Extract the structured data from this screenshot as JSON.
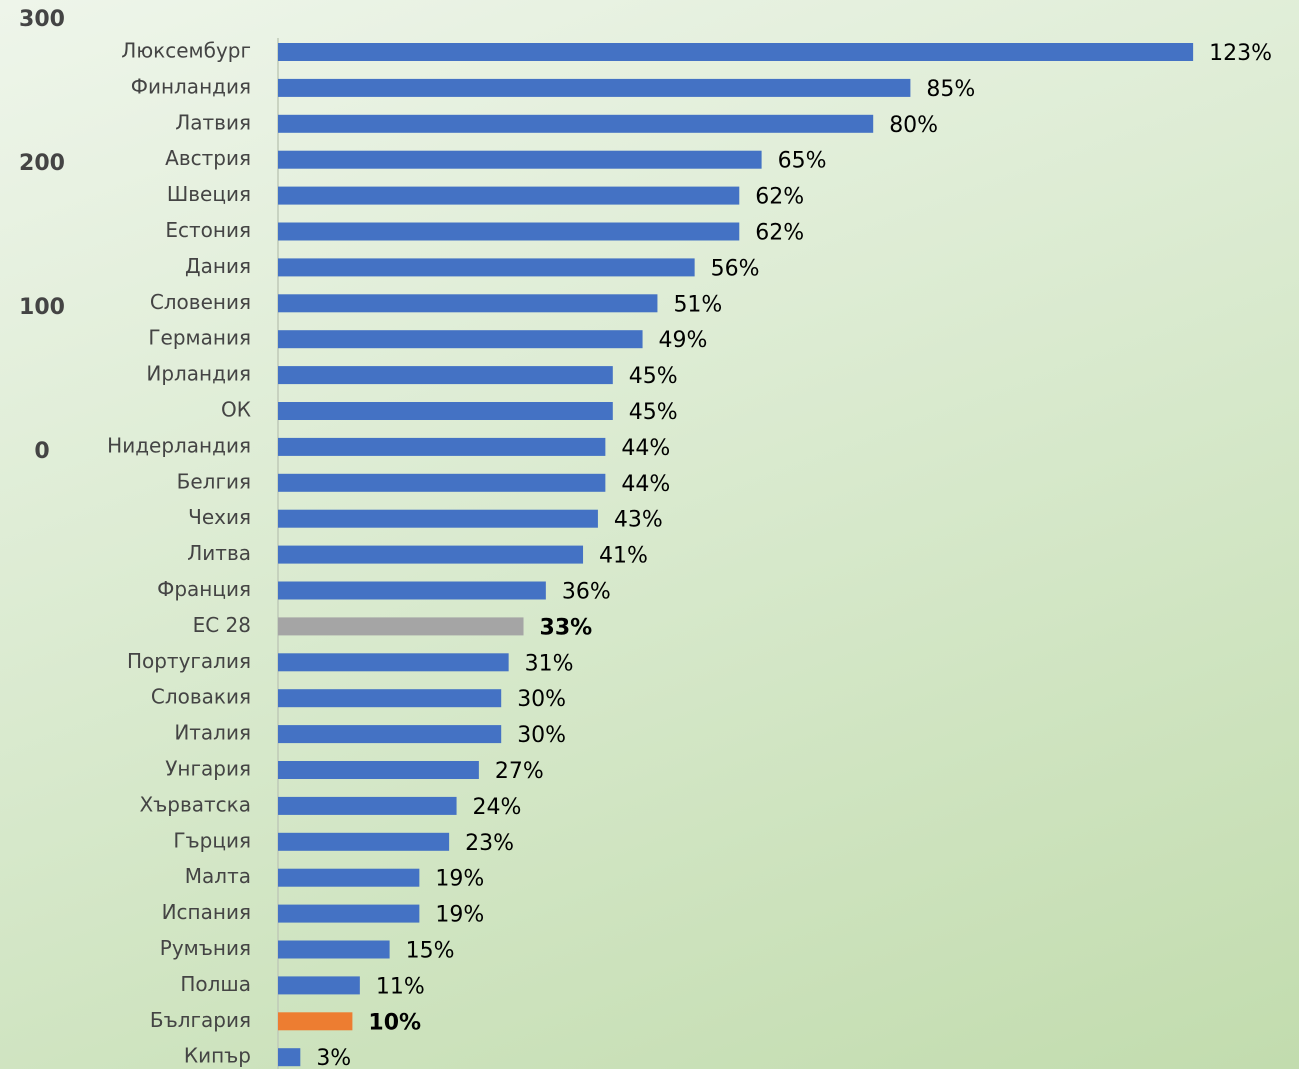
{
  "chart_data": {
    "type": "bar",
    "orientation": "horizontal",
    "categories": [
      "Люксембург",
      "Финландия",
      "Латвия",
      "Австрия",
      "Швеция",
      "Естония",
      "Дания",
      "Словения",
      "Германия",
      "Ирландия",
      "ОК",
      "Нидерландия",
      "Белгия",
      "Чехия",
      "Литва",
      "Франция",
      "ЕС 28",
      "Португалия",
      "Словакия",
      "Италия",
      "Унгария",
      "Хърватска",
      "Гърция",
      "Малта",
      "Испания",
      "Румъния",
      "Полша",
      "България",
      "Кипър"
    ],
    "values": [
      123,
      85,
      80,
      65,
      62,
      62,
      56,
      51,
      49,
      45,
      45,
      44,
      44,
      43,
      41,
      36,
      33,
      31,
      30,
      30,
      27,
      24,
      23,
      19,
      19,
      15,
      11,
      10,
      3
    ],
    "value_labels": [
      "123%",
      "85%",
      "80%",
      "65%",
      "62%",
      "62%",
      "56%",
      "51%",
      "49%",
      "45%",
      "45%",
      "44%",
      "44%",
      "43%",
      "41%",
      "36%",
      "33%",
      "31%",
      "30%",
      "30%",
      "27%",
      "24%",
      "23%",
      "19%",
      "19%",
      "15%",
      "11%",
      "10%",
      "3%"
    ],
    "color": "#4472c4",
    "highlights": [
      {
        "category": "ЕС 28",
        "color": "#a5a5a5"
      },
      {
        "category": "България",
        "color": "#ed7d31"
      }
    ],
    "xlim": [
      0,
      130
    ],
    "y2lim": [
      0,
      300
    ],
    "y2ticks": [
      0,
      100,
      200,
      300
    ]
  }
}
